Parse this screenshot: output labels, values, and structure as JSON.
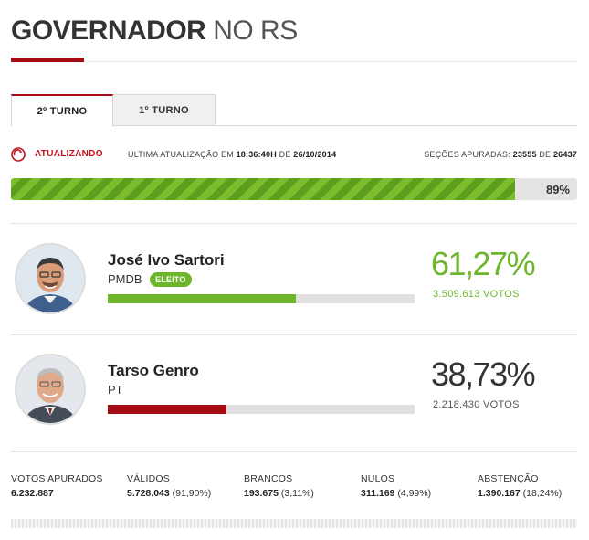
{
  "header": {
    "title_strong": "GOVERNADOR",
    "title_light": "NO RS"
  },
  "tabs": [
    {
      "label": "2º TURNO",
      "active": true
    },
    {
      "label": "1º TURNO",
      "active": false
    }
  ],
  "status": {
    "updating_label": "ATUALIZANDO",
    "last_update_prefix": "ÚLTIMA ATUALIZAÇÃO EM",
    "last_update_time": "18:36:40H",
    "last_update_sep": "DE",
    "last_update_date": "26/10/2014",
    "sections_prefix": "SEÇÕES APURADAS:",
    "sections_done": "23555",
    "sections_sep": "DE",
    "sections_total": "26437"
  },
  "progress": {
    "percent": 89,
    "label": "89%"
  },
  "candidates": [
    {
      "name": "José Ivo Sartori",
      "party": "PMDB",
      "badge": "ELEITO",
      "percent_label": "61,27%",
      "share": 61.27,
      "votes_label": "3.509.613 VOTOS",
      "color": "#6cb52c"
    },
    {
      "name": "Tarso Genro",
      "party": "PT",
      "badge": "",
      "percent_label": "38,73%",
      "share": 38.73,
      "votes_label": "2.218.430 VOTOS",
      "color": "#a50b13"
    }
  ],
  "stats": [
    {
      "label": "VOTOS APURADOS",
      "value": "6.232.887",
      "detail": ""
    },
    {
      "label": "VÁLIDOS",
      "value": "5.728.043",
      "detail": "(91,90%)"
    },
    {
      "label": "BRANCOS",
      "value": "193.675",
      "detail": "(3,11%)"
    },
    {
      "label": "NULOS",
      "value": "311.169",
      "detail": "(4,99%)"
    },
    {
      "label": "ABSTENÇÃO",
      "value": "1.390.167",
      "detail": "(18,24%)"
    }
  ],
  "colors": {
    "brand_red": "#a50b13",
    "winner_green": "#6cb52c",
    "loser_gray": "#333333"
  },
  "icons": {
    "refresh": "refresh-icon"
  }
}
